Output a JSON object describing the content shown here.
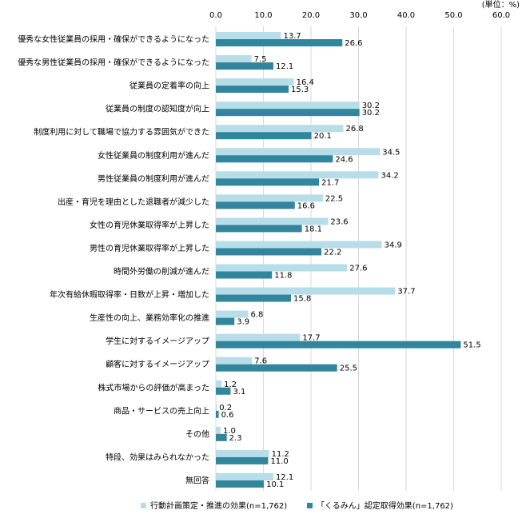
{
  "chart_data": {
    "type": "bar",
    "orientation": "horizontal",
    "unit_label": "(単位：%)",
    "xlim": [
      0,
      60
    ],
    "xticks": [
      "0.0",
      "10.0",
      "20.0",
      "30.0",
      "40.0",
      "50.0",
      "60.0"
    ],
    "grid": true,
    "legend_position": "bottom",
    "categories": [
      "優秀な女性従業員の採用・確保ができるようになった",
      "優秀な男性従業員の採用・確保ができるようになった",
      "従業員の定着率の向上",
      "従業員の制度の認知度が向上",
      "制度利用に対して職場で協力する雰囲気ができた",
      "女性従業員の制度利用が進んだ",
      "男性従業員の制度利用が進んだ",
      "出産・育児を理由とした退職者が減少した",
      "女性の育児休業取得率が上昇した",
      "男性の育児休業取得率が上昇した",
      "時間外労働の削減が進んだ",
      "年次有給休暇取得率・日数が上昇・増加した",
      "生産性の向上、業務効率化の推進",
      "学生に対するイメージアップ",
      "顧客に対するイメージアップ",
      "株式市場からの評価が高まった",
      "商品・サービスの売上向上",
      "その他",
      "特段、効果はみられなかった",
      "無回答"
    ],
    "series": [
      {
        "name": "行動計画策定・推進の効果(n=1,762)",
        "color": "#b7dde8",
        "values": [
          13.7,
          7.5,
          16.4,
          30.2,
          26.8,
          34.5,
          34.2,
          22.5,
          23.6,
          34.9,
          27.6,
          37.7,
          6.8,
          17.7,
          7.6,
          1.2,
          0.2,
          1.0,
          11.2,
          12.1
        ],
        "labels": [
          "13.7",
          "7.5",
          "16.4",
          "30.2",
          "26.8",
          "34.5",
          "34.2",
          "22.5",
          "23.6",
          "34.9",
          "27.6",
          "37.7",
          "6.8",
          "17.7",
          "7.6",
          "1.2",
          "0.2",
          "1.0",
          "11.2",
          "12.1"
        ]
      },
      {
        "name": "「くるみん」認定取得効果(n=1,762)",
        "color": "#31859c",
        "values": [
          26.6,
          12.1,
          15.3,
          30.2,
          20.1,
          24.6,
          21.7,
          16.6,
          18.1,
          22.2,
          11.8,
          15.8,
          3.9,
          51.5,
          25.5,
          3.1,
          0.6,
          2.3,
          11.0,
          10.1
        ],
        "labels": [
          "26.6",
          "12.1",
          "15.3",
          "30.2",
          "20.1",
          "24.6",
          "21.7",
          "16.6",
          "18.1",
          "22.2",
          "11.8",
          "15.8",
          "3.9",
          "51.5",
          "25.5",
          "3.1",
          "0.6",
          "2.3",
          "11.0",
          "10.1"
        ]
      }
    ]
  }
}
